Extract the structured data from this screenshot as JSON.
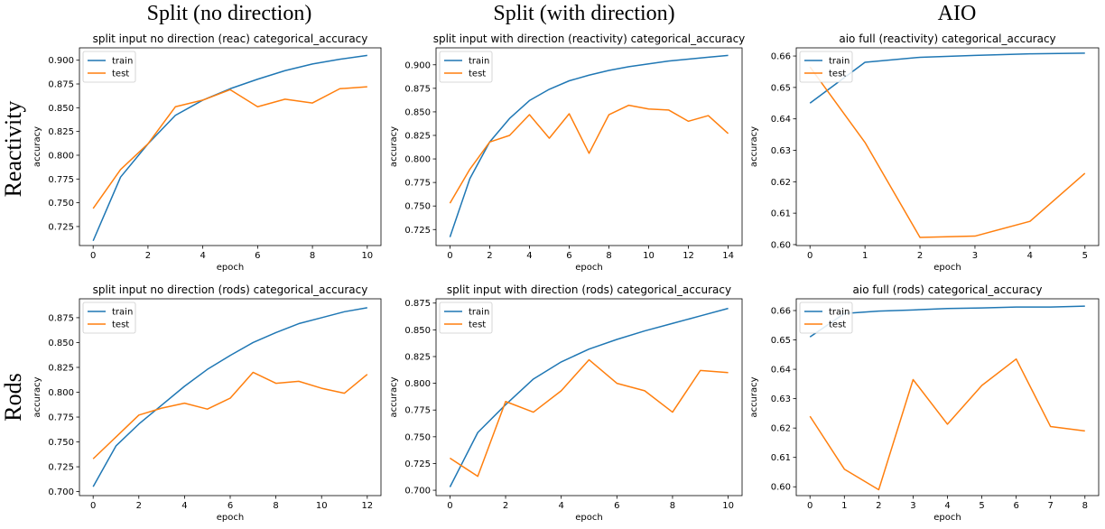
{
  "column_titles": [
    "Split (no direction)",
    "Split (with direction)",
    "AIO"
  ],
  "row_titles": [
    "Reactivity",
    "Rods"
  ],
  "chart_data": [
    {
      "type": "line",
      "title": "split input no direction (reac) categorical_accuracy",
      "xlabel": "epoch",
      "ylabel": "accuracy",
      "xlim": [
        -0.5,
        10.5
      ],
      "ylim": [
        0.705,
        0.913
      ],
      "xticks": [
        0,
        2,
        4,
        6,
        8,
        10
      ],
      "yticks": [
        0.725,
        0.75,
        0.775,
        0.8,
        0.825,
        0.85,
        0.875,
        0.9
      ],
      "ytick_labels": [
        "0.725",
        "0.750",
        "0.775",
        "0.800",
        "0.825",
        "0.850",
        "0.875",
        "0.900"
      ],
      "legend": "upper-left",
      "x": [
        0,
        1,
        2,
        3,
        4,
        5,
        6,
        7,
        8,
        9,
        10
      ],
      "series": [
        {
          "name": "train",
          "color": "#1f77b4",
          "values": [
            0.71,
            0.777,
            0.812,
            0.842,
            0.858,
            0.87,
            0.88,
            0.889,
            0.896,
            0.901,
            0.905
          ]
        },
        {
          "name": "test",
          "color": "#ff7f0e",
          "values": [
            0.744,
            0.785,
            0.812,
            0.851,
            0.858,
            0.869,
            0.851,
            0.859,
            0.855,
            0.87,
            0.872
          ]
        }
      ]
    },
    {
      "type": "line",
      "title": "split input with direction (reactivity) categorical_accuracy",
      "xlabel": "epoch",
      "ylabel": "accuracy",
      "xlim": [
        -0.7,
        14.7
      ],
      "ylim": [
        0.708,
        0.918
      ],
      "xticks": [
        0,
        2,
        4,
        6,
        8,
        10,
        12,
        14
      ],
      "yticks": [
        0.725,
        0.75,
        0.775,
        0.8,
        0.825,
        0.85,
        0.875,
        0.9
      ],
      "ytick_labels": [
        "0.725",
        "0.750",
        "0.775",
        "0.800",
        "0.825",
        "0.850",
        "0.875",
        "0.900"
      ],
      "legend": "upper-left",
      "x": [
        0,
        1,
        2,
        3,
        4,
        5,
        6,
        7,
        8,
        9,
        10,
        11,
        12,
        13,
        14
      ],
      "series": [
        {
          "name": "train",
          "color": "#1f77b4",
          "values": [
            0.717,
            0.779,
            0.818,
            0.843,
            0.862,
            0.874,
            0.883,
            0.889,
            0.894,
            0.898,
            0.901,
            0.904,
            0.906,
            0.908,
            0.91
          ]
        },
        {
          "name": "test",
          "color": "#ff7f0e",
          "values": [
            0.753,
            0.789,
            0.818,
            0.825,
            0.847,
            0.822,
            0.848,
            0.806,
            0.847,
            0.857,
            0.853,
            0.852,
            0.84,
            0.846,
            0.827
          ]
        }
      ]
    },
    {
      "type": "line",
      "title": "aio full (reactivity) categorical_accuracy",
      "xlabel": "epoch",
      "ylabel": "accuracy",
      "xlim": [
        -0.25,
        5.25
      ],
      "ylim": [
        0.5997,
        0.6626
      ],
      "xticks": [
        0,
        1,
        2,
        3,
        4,
        5
      ],
      "yticks": [
        0.6,
        0.61,
        0.62,
        0.63,
        0.64,
        0.65,
        0.66
      ],
      "ytick_labels": [
        "0.60",
        "0.61",
        "0.62",
        "0.63",
        "0.64",
        "0.65",
        "0.66"
      ],
      "legend": "upper-left",
      "x": [
        0,
        1,
        2,
        3,
        4,
        5
      ],
      "series": [
        {
          "name": "train",
          "color": "#1f77b4",
          "values": [
            0.645,
            0.658,
            0.6596,
            0.6602,
            0.6607,
            0.6609
          ]
        },
        {
          "name": "test",
          "color": "#ff7f0e",
          "values": [
            0.6565,
            0.6325,
            0.6023,
            0.6027,
            0.6074,
            0.6227
          ]
        }
      ]
    },
    {
      "type": "line",
      "title": "split input no direction (rods) categorical_accuracy",
      "xlabel": "epoch",
      "ylabel": "accuracy",
      "xlim": [
        -0.6,
        12.6
      ],
      "ylim": [
        0.696,
        0.894
      ],
      "xticks": [
        0,
        2,
        4,
        6,
        8,
        10,
        12
      ],
      "yticks": [
        0.7,
        0.725,
        0.75,
        0.775,
        0.8,
        0.825,
        0.85,
        0.875
      ],
      "ytick_labels": [
        "0.700",
        "0.725",
        "0.750",
        "0.775",
        "0.800",
        "0.825",
        "0.850",
        "0.875"
      ],
      "legend": "upper-left",
      "x": [
        0,
        1,
        2,
        3,
        4,
        5,
        6,
        7,
        8,
        9,
        10,
        11,
        12
      ],
      "series": [
        {
          "name": "train",
          "color": "#1f77b4",
          "values": [
            0.705,
            0.746,
            0.768,
            0.787,
            0.806,
            0.823,
            0.837,
            0.85,
            0.86,
            0.869,
            0.875,
            0.881,
            0.885
          ]
        },
        {
          "name": "test",
          "color": "#ff7f0e",
          "values": [
            0.733,
            0.755,
            0.777,
            0.784,
            0.789,
            0.783,
            0.794,
            0.82,
            0.809,
            0.811,
            0.804,
            0.799,
            0.818
          ]
        }
      ]
    },
    {
      "type": "line",
      "title": "split input with direction (rods) categorical_accuracy",
      "xlabel": "epoch",
      "ylabel": "accuracy",
      "xlim": [
        -0.5,
        10.5
      ],
      "ylim": [
        0.695,
        0.879
      ],
      "xticks": [
        0,
        2,
        4,
        6,
        8,
        10
      ],
      "yticks": [
        0.7,
        0.725,
        0.75,
        0.775,
        0.8,
        0.825,
        0.85,
        0.875
      ],
      "ytick_labels": [
        "0.700",
        "0.725",
        "0.750",
        "0.775",
        "0.800",
        "0.825",
        "0.850",
        "0.875"
      ],
      "legend": "upper-left",
      "x": [
        0,
        1,
        2,
        3,
        4,
        5,
        6,
        7,
        8,
        9,
        10
      ],
      "series": [
        {
          "name": "train",
          "color": "#1f77b4",
          "values": [
            0.703,
            0.754,
            0.78,
            0.804,
            0.82,
            0.832,
            0.841,
            0.849,
            0.856,
            0.863,
            0.87
          ]
        },
        {
          "name": "test",
          "color": "#ff7f0e",
          "values": [
            0.73,
            0.713,
            0.783,
            0.773,
            0.793,
            0.822,
            0.8,
            0.793,
            0.773,
            0.812,
            0.81
          ]
        }
      ]
    },
    {
      "type": "line",
      "title": "aio full (rods) categorical_accuracy",
      "xlabel": "epoch",
      "ylabel": "accuracy",
      "xlim": [
        -0.4,
        8.4
      ],
      "ylim": [
        0.597,
        0.664
      ],
      "xticks": [
        0,
        1,
        2,
        3,
        4,
        5,
        6,
        7,
        8
      ],
      "yticks": [
        0.6,
        0.61,
        0.62,
        0.63,
        0.64,
        0.65,
        0.66
      ],
      "ytick_labels": [
        "0.60",
        "0.61",
        "0.62",
        "0.63",
        "0.64",
        "0.65",
        "0.66"
      ],
      "legend": "upper-left",
      "x": [
        0,
        1,
        2,
        3,
        4,
        5,
        6,
        7,
        8
      ],
      "series": [
        {
          "name": "train",
          "color": "#1f77b4",
          "values": [
            0.651,
            0.659,
            0.6598,
            0.6602,
            0.6607,
            0.6609,
            0.6612,
            0.6612,
            0.6615
          ]
        },
        {
          "name": "test",
          "color": "#ff7f0e",
          "values": [
            0.624,
            0.606,
            0.599,
            0.6365,
            0.6213,
            0.6345,
            0.6435,
            0.6205,
            0.619
          ]
        }
      ]
    }
  ]
}
